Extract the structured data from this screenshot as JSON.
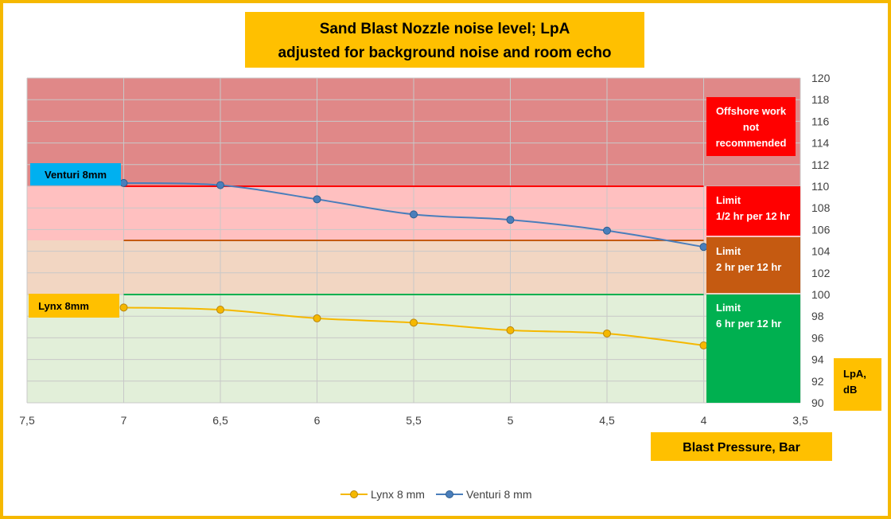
{
  "chart_data": {
    "type": "line",
    "title_line1": "Sand Blast Nozzle noise level; LpA",
    "title_line2": "adjusted for background noise and room echo",
    "xlabel": "Blast Pressure, Bar",
    "ylabel_line1": "LpA,",
    "ylabel_line2": "dB",
    "xlim": [
      7.5,
      3.5
    ],
    "ylim": [
      90,
      120
    ],
    "x_axis_reversed": true,
    "x_ticks": [
      "7,5",
      "7",
      "6,5",
      "6",
      "5,5",
      "5",
      "4,5",
      "4",
      "3,5"
    ],
    "y_ticks": [
      "90",
      "92",
      "94",
      "96",
      "98",
      "100",
      "102",
      "104",
      "106",
      "108",
      "110",
      "112",
      "114",
      "116",
      "118",
      "120"
    ],
    "y_axis_position": "right",
    "grid": true,
    "legend_position": "bottom",
    "series": [
      {
        "name": "Lynx 8 mm",
        "label": "Lynx 8mm",
        "color": "#f5b800",
        "x": [
          7,
          6.5,
          6,
          5.5,
          5,
          4.5,
          4
        ],
        "values": [
          98.8,
          98.6,
          97.8,
          97.4,
          96.7,
          96.4,
          95.3
        ]
      },
      {
        "name": "Venturi 8 mm",
        "label": "Venturi 8mm",
        "color": "#4a7ebb",
        "x": [
          7,
          6.5,
          6,
          5.5,
          5,
          4.5,
          4
        ],
        "values": [
          110.3,
          110.1,
          108.8,
          107.4,
          106.9,
          105.9,
          104.4
        ]
      }
    ],
    "zones": [
      {
        "from": 110,
        "to": 120,
        "fill": "#e08888",
        "box_color": "#ff0000",
        "lines": [
          "Offshore work",
          "not",
          "recommended"
        ]
      },
      {
        "from": 105,
        "to": 110,
        "fill": "#ffc0c0",
        "box_color": "#ff0000",
        "line_color": "#ff0000",
        "lines": [
          "Limit",
          "1/2 hr per 12 hr"
        ]
      },
      {
        "from": 100,
        "to": 105,
        "fill": "#f2d6c2",
        "box_color": "#c55a11",
        "line_color": "#c55a11",
        "lines": [
          "Limit",
          "2 hr per 12 hr"
        ]
      },
      {
        "from": 90,
        "to": 100,
        "fill": "#e2efd9",
        "box_color": "#00b050",
        "line_color": "#00b050",
        "lines": [
          "Limit",
          "6 hr per 12 hr"
        ]
      }
    ],
    "label_colors": {
      "title_box": "#ffc000",
      "venturi_label_box": "#00b0f0",
      "lynx_label_box": "#ffc000",
      "axis_label_box": "#ffc000"
    }
  }
}
